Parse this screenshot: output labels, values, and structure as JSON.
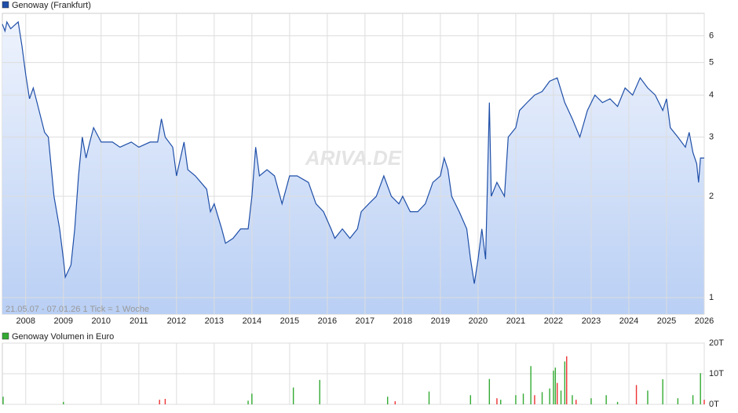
{
  "chart_data": [
    {
      "type": "line",
      "annotation": "21.05.07 - 07.01.26   1 Tick = 1 Woche",
      "watermark": "ARIVA.DE",
      "log_scale": true,
      "grid": true,
      "x": [
        2007.38,
        2007.45,
        2007.5,
        2007.6,
        2007.8,
        2007.9,
        2008.0,
        2008.1,
        2008.2,
        2008.3,
        2008.5,
        2008.6,
        2008.75,
        2008.9,
        2009.0,
        2009.05,
        2009.2,
        2009.3,
        2009.4,
        2009.5,
        2009.6,
        2009.7,
        2009.8,
        2010.0,
        2010.3,
        2010.5,
        2010.8,
        2011.0,
        2011.3,
        2011.5,
        2011.6,
        2011.7,
        2011.9,
        2012.0,
        2012.2,
        2012.3,
        2012.5,
        2012.8,
        2012.9,
        2013.0,
        2013.2,
        2013.3,
        2013.5,
        2013.7,
        2013.9,
        2014.0,
        2014.1,
        2014.2,
        2014.4,
        2014.6,
        2014.8,
        2015.0,
        2015.2,
        2015.5,
        2015.7,
        2015.9,
        2016.1,
        2016.2,
        2016.4,
        2016.6,
        2016.8,
        2016.9,
        2017.1,
        2017.3,
        2017.5,
        2017.7,
        2017.9,
        2018.0,
        2018.2,
        2018.4,
        2018.6,
        2018.8,
        2019.0,
        2019.1,
        2019.2,
        2019.3,
        2019.5,
        2019.7,
        2019.8,
        2019.9,
        2020.0,
        2020.1,
        2020.2,
        2020.3,
        2020.35,
        2020.5,
        2020.7,
        2020.8,
        2021.0,
        2021.1,
        2021.3,
        2021.5,
        2021.7,
        2021.9,
        2022.1,
        2022.3,
        2022.5,
        2022.7,
        2022.9,
        2023.1,
        2023.3,
        2023.5,
        2023.7,
        2023.9,
        2024.1,
        2024.3,
        2024.5,
        2024.7,
        2024.9,
        2025.0,
        2025.1,
        2025.3,
        2025.5,
        2025.6,
        2025.7,
        2025.8,
        2025.85,
        2025.9,
        2026.0
      ],
      "series": [
        {
          "name": "Genoway (Frankfurt)",
          "color": "#1f4fa8",
          "values": [
            6.5,
            6.2,
            6.6,
            6.3,
            6.6,
            5.6,
            4.6,
            3.9,
            4.2,
            3.8,
            3.1,
            3.0,
            2.0,
            1.6,
            1.3,
            1.15,
            1.25,
            1.6,
            2.3,
            3.0,
            2.6,
            2.9,
            3.2,
            2.9,
            2.9,
            2.8,
            2.9,
            2.8,
            2.9,
            2.9,
            3.4,
            3.0,
            2.8,
            2.3,
            2.9,
            2.4,
            2.3,
            2.1,
            1.8,
            1.9,
            1.6,
            1.45,
            1.5,
            1.6,
            1.6,
            2.0,
            2.8,
            2.3,
            2.4,
            2.3,
            1.9,
            2.3,
            2.3,
            2.2,
            1.9,
            1.8,
            1.6,
            1.5,
            1.6,
            1.5,
            1.6,
            1.8,
            1.9,
            2.0,
            2.3,
            2.0,
            1.9,
            2.0,
            1.8,
            1.8,
            1.9,
            2.2,
            2.3,
            2.6,
            2.4,
            2.0,
            1.8,
            1.6,
            1.3,
            1.1,
            1.3,
            1.6,
            1.3,
            3.8,
            2.0,
            2.2,
            2.0,
            3.0,
            3.2,
            3.6,
            3.8,
            4.0,
            4.1,
            4.4,
            4.5,
            3.8,
            3.4,
            3.0,
            3.6,
            4.0,
            3.8,
            3.9,
            3.7,
            4.2,
            4.0,
            4.5,
            4.2,
            4.0,
            3.6,
            3.9,
            3.2,
            3.0,
            2.8,
            3.1,
            2.7,
            2.5,
            2.2,
            2.6,
            2.6
          ]
        }
      ],
      "xlim": [
        2007.38,
        2026.0
      ],
      "xticks": [
        2008,
        2009,
        2010,
        2011,
        2012,
        2013,
        2014,
        2015,
        2016,
        2017,
        2018,
        2019,
        2020,
        2021,
        2022,
        2023,
        2024,
        2025,
        2026
      ],
      "ylim": [
        0.893,
        7
      ],
      "yticks": [
        1,
        2,
        3,
        4,
        5,
        6
      ]
    },
    {
      "type": "bar",
      "xlim": [
        2007.38,
        2026.0
      ],
      "ylim": [
        0,
        20000
      ],
      "yticks": [
        {
          "value": 0,
          "label": "0T"
        },
        {
          "value": 10000,
          "label": "10T"
        },
        {
          "value": 20000,
          "label": "20T"
        }
      ],
      "x": [
        2007.4,
        2009.0,
        2011.55,
        2011.7,
        2013.9,
        2014.0,
        2015.1,
        2015.8,
        2017.6,
        2017.8,
        2018.7,
        2019.8,
        2020.3,
        2020.5,
        2020.6,
        2021.0,
        2021.2,
        2021.4,
        2021.5,
        2021.7,
        2021.9,
        2022.0,
        2022.05,
        2022.1,
        2022.2,
        2022.3,
        2022.35,
        2022.5,
        2022.6,
        2023.0,
        2023.4,
        2023.7,
        2024.2,
        2024.5,
        2024.9,
        2025.3,
        2025.7,
        2025.9,
        2026.0
      ],
      "series": [
        {
          "name": "Genoway Volumen in Euro",
          "color": "#3a3",
          "values": [
            2500,
            800,
            1500,
            1800,
            1200,
            3500,
            5500,
            8000,
            2500,
            1000,
            4200,
            3000,
            8300,
            2000,
            1500,
            3000,
            3500,
            12500,
            3000,
            4000,
            5200,
            11000,
            12000,
            7000,
            4500,
            14000,
            15700,
            3000,
            1500,
            2000,
            3000,
            800,
            6300,
            4500,
            8200,
            2000,
            3000,
            10200,
            1500
          ],
          "colors": [
            "#3a3",
            "#3a3",
            "#e33",
            "#e33",
            "#3a3",
            "#3a3",
            "#3a3",
            "#3a3",
            "#3a3",
            "#e33",
            "#3a3",
            "#3a3",
            "#3a3",
            "#e33",
            "#3a3",
            "#3a3",
            "#3a3",
            "#3a3",
            "#e33",
            "#3a3",
            "#3a3",
            "#3a3",
            "#3a3",
            "#e33",
            "#3a3",
            "#3a3",
            "#e33",
            "#3a3",
            "#e33",
            "#3a3",
            "#3a3",
            "#3a3",
            "#e33",
            "#3a3",
            "#3a3",
            "#3a3",
            "#3a3",
            "#3a3",
            "#e33"
          ]
        }
      ]
    }
  ]
}
